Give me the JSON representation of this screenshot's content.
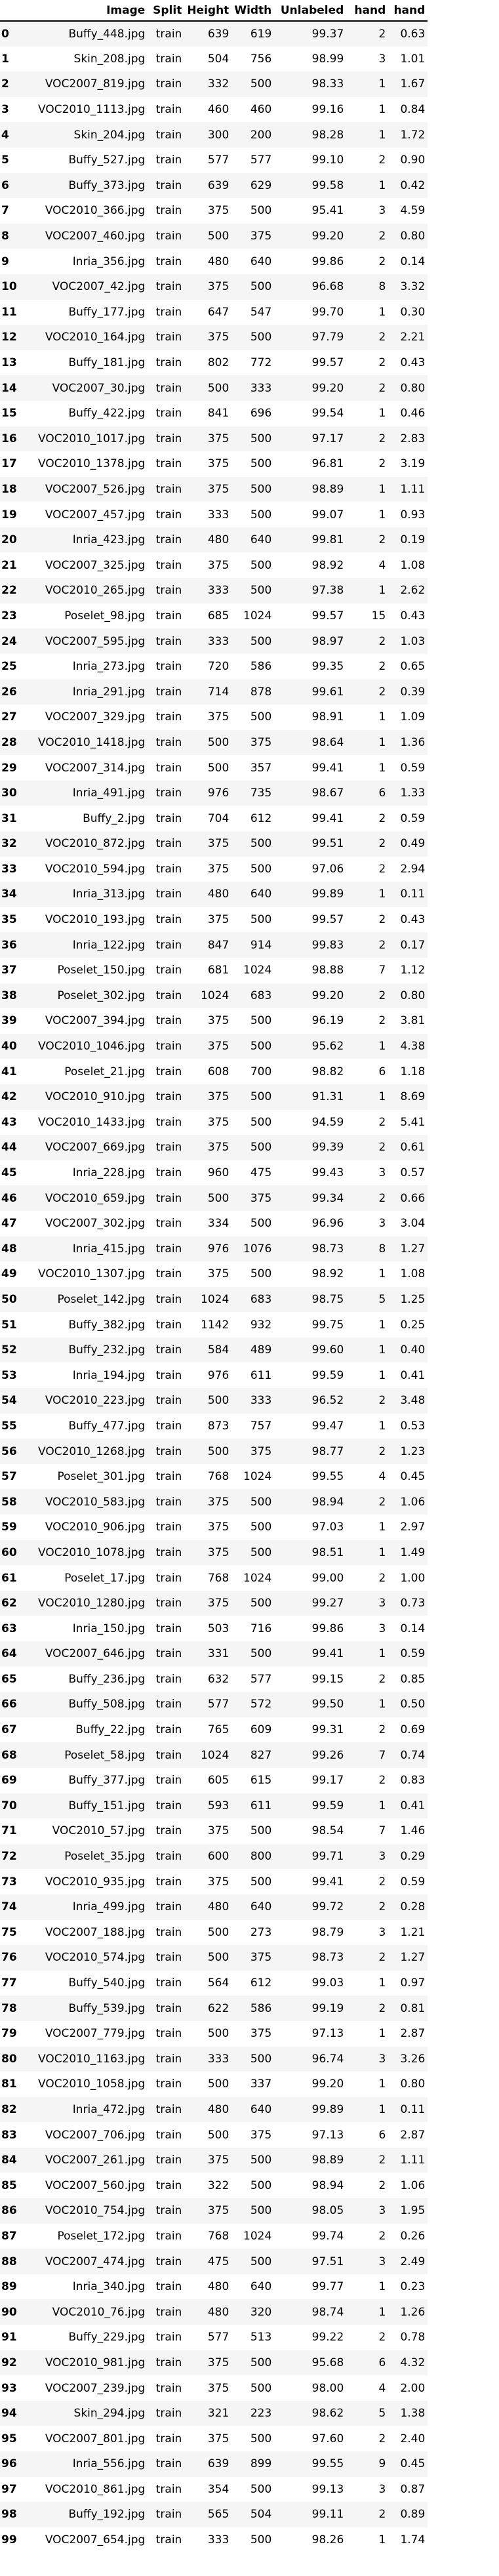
{
  "columns": [
    "",
    "Image",
    "Split",
    "Height",
    "Width",
    "Unlabeled",
    "hand",
    "hand"
  ],
  "rows": [
    [
      "0",
      "Buffy_448.jpg",
      "train",
      "639",
      "619",
      "99.37",
      "2",
      "0.63"
    ],
    [
      "1",
      "Skin_208.jpg",
      "train",
      "504",
      "756",
      "98.99",
      "3",
      "1.01"
    ],
    [
      "2",
      "VOC2007_819.jpg",
      "train",
      "332",
      "500",
      "98.33",
      "1",
      "1.67"
    ],
    [
      "3",
      "VOC2010_1113.jpg",
      "train",
      "460",
      "460",
      "99.16",
      "1",
      "0.84"
    ],
    [
      "4",
      "Skin_204.jpg",
      "train",
      "300",
      "200",
      "98.28",
      "1",
      "1.72"
    ],
    [
      "5",
      "Buffy_527.jpg",
      "train",
      "577",
      "577",
      "99.10",
      "2",
      "0.90"
    ],
    [
      "6",
      "Buffy_373.jpg",
      "train",
      "639",
      "629",
      "99.58",
      "1",
      "0.42"
    ],
    [
      "7",
      "VOC2010_366.jpg",
      "train",
      "375",
      "500",
      "95.41",
      "3",
      "4.59"
    ],
    [
      "8",
      "VOC2007_460.jpg",
      "train",
      "500",
      "375",
      "99.20",
      "2",
      "0.80"
    ],
    [
      "9",
      "Inria_356.jpg",
      "train",
      "480",
      "640",
      "99.86",
      "2",
      "0.14"
    ],
    [
      "10",
      "VOC2007_42.jpg",
      "train",
      "375",
      "500",
      "96.68",
      "8",
      "3.32"
    ],
    [
      "11",
      "Buffy_177.jpg",
      "train",
      "647",
      "547",
      "99.70",
      "1",
      "0.30"
    ],
    [
      "12",
      "VOC2010_164.jpg",
      "train",
      "375",
      "500",
      "97.79",
      "2",
      "2.21"
    ],
    [
      "13",
      "Buffy_181.jpg",
      "train",
      "802",
      "772",
      "99.57",
      "2",
      "0.43"
    ],
    [
      "14",
      "VOC2007_30.jpg",
      "train",
      "500",
      "333",
      "99.20",
      "2",
      "0.80"
    ],
    [
      "15",
      "Buffy_422.jpg",
      "train",
      "841",
      "696",
      "99.54",
      "1",
      "0.46"
    ],
    [
      "16",
      "VOC2010_1017.jpg",
      "train",
      "375",
      "500",
      "97.17",
      "2",
      "2.83"
    ],
    [
      "17",
      "VOC2010_1378.jpg",
      "train",
      "375",
      "500",
      "96.81",
      "2",
      "3.19"
    ],
    [
      "18",
      "VOC2007_526.jpg",
      "train",
      "375",
      "500",
      "98.89",
      "1",
      "1.11"
    ],
    [
      "19",
      "VOC2007_457.jpg",
      "train",
      "333",
      "500",
      "99.07",
      "1",
      "0.93"
    ],
    [
      "20",
      "Inria_423.jpg",
      "train",
      "480",
      "640",
      "99.81",
      "2",
      "0.19"
    ],
    [
      "21",
      "VOC2007_325.jpg",
      "train",
      "375",
      "500",
      "98.92",
      "4",
      "1.08"
    ],
    [
      "22",
      "VOC2010_265.jpg",
      "train",
      "333",
      "500",
      "97.38",
      "1",
      "2.62"
    ],
    [
      "23",
      "Poselet_98.jpg",
      "train",
      "685",
      "1024",
      "99.57",
      "15",
      "0.43"
    ],
    [
      "24",
      "VOC2007_595.jpg",
      "train",
      "333",
      "500",
      "98.97",
      "2",
      "1.03"
    ],
    [
      "25",
      "Inria_273.jpg",
      "train",
      "720",
      "586",
      "99.35",
      "2",
      "0.65"
    ],
    [
      "26",
      "Inria_291.jpg",
      "train",
      "714",
      "878",
      "99.61",
      "2",
      "0.39"
    ],
    [
      "27",
      "VOC2007_329.jpg",
      "train",
      "375",
      "500",
      "98.91",
      "1",
      "1.09"
    ],
    [
      "28",
      "VOC2010_1418.jpg",
      "train",
      "500",
      "375",
      "98.64",
      "1",
      "1.36"
    ],
    [
      "29",
      "VOC2007_314.jpg",
      "train",
      "500",
      "357",
      "99.41",
      "1",
      "0.59"
    ],
    [
      "30",
      "Inria_491.jpg",
      "train",
      "976",
      "735",
      "98.67",
      "6",
      "1.33"
    ],
    [
      "31",
      "Buffy_2.jpg",
      "train",
      "704",
      "612",
      "99.41",
      "2",
      "0.59"
    ],
    [
      "32",
      "VOC2010_872.jpg",
      "train",
      "375",
      "500",
      "99.51",
      "2",
      "0.49"
    ],
    [
      "33",
      "VOC2010_594.jpg",
      "train",
      "375",
      "500",
      "97.06",
      "2",
      "2.94"
    ],
    [
      "34",
      "Inria_313.jpg",
      "train",
      "480",
      "640",
      "99.89",
      "1",
      "0.11"
    ],
    [
      "35",
      "VOC2010_193.jpg",
      "train",
      "375",
      "500",
      "99.57",
      "2",
      "0.43"
    ],
    [
      "36",
      "Inria_122.jpg",
      "train",
      "847",
      "914",
      "99.83",
      "2",
      "0.17"
    ],
    [
      "37",
      "Poselet_150.jpg",
      "train",
      "681",
      "1024",
      "98.88",
      "7",
      "1.12"
    ],
    [
      "38",
      "Poselet_302.jpg",
      "train",
      "1024",
      "683",
      "99.20",
      "2",
      "0.80"
    ],
    [
      "39",
      "VOC2007_394.jpg",
      "train",
      "375",
      "500",
      "96.19",
      "2",
      "3.81"
    ],
    [
      "40",
      "VOC2010_1046.jpg",
      "train",
      "375",
      "500",
      "95.62",
      "1",
      "4.38"
    ],
    [
      "41",
      "Poselet_21.jpg",
      "train",
      "608",
      "700",
      "98.82",
      "6",
      "1.18"
    ],
    [
      "42",
      "VOC2010_910.jpg",
      "train",
      "375",
      "500",
      "91.31",
      "1",
      "8.69"
    ],
    [
      "43",
      "VOC2010_1433.jpg",
      "train",
      "375",
      "500",
      "94.59",
      "2",
      "5.41"
    ],
    [
      "44",
      "VOC2007_669.jpg",
      "train",
      "375",
      "500",
      "99.39",
      "2",
      "0.61"
    ],
    [
      "45",
      "Inria_228.jpg",
      "train",
      "960",
      "475",
      "99.43",
      "3",
      "0.57"
    ],
    [
      "46",
      "VOC2010_659.jpg",
      "train",
      "500",
      "375",
      "99.34",
      "2",
      "0.66"
    ],
    [
      "47",
      "VOC2007_302.jpg",
      "train",
      "334",
      "500",
      "96.96",
      "3",
      "3.04"
    ],
    [
      "48",
      "Inria_415.jpg",
      "train",
      "976",
      "1076",
      "98.73",
      "8",
      "1.27"
    ],
    [
      "49",
      "VOC2010_1307.jpg",
      "train",
      "375",
      "500",
      "98.92",
      "1",
      "1.08"
    ],
    [
      "50",
      "Poselet_142.jpg",
      "train",
      "1024",
      "683",
      "98.75",
      "5",
      "1.25"
    ],
    [
      "51",
      "Buffy_382.jpg",
      "train",
      "1142",
      "932",
      "99.75",
      "1",
      "0.25"
    ],
    [
      "52",
      "Buffy_232.jpg",
      "train",
      "584",
      "489",
      "99.60",
      "1",
      "0.40"
    ],
    [
      "53",
      "Inria_194.jpg",
      "train",
      "976",
      "611",
      "99.59",
      "1",
      "0.41"
    ],
    [
      "54",
      "VOC2010_223.jpg",
      "train",
      "500",
      "333",
      "96.52",
      "2",
      "3.48"
    ],
    [
      "55",
      "Buffy_477.jpg",
      "train",
      "873",
      "757",
      "99.47",
      "1",
      "0.53"
    ],
    [
      "56",
      "VOC2010_1268.jpg",
      "train",
      "500",
      "375",
      "98.77",
      "2",
      "1.23"
    ],
    [
      "57",
      "Poselet_301.jpg",
      "train",
      "768",
      "1024",
      "99.55",
      "4",
      "0.45"
    ],
    [
      "58",
      "VOC2010_583.jpg",
      "train",
      "375",
      "500",
      "98.94",
      "2",
      "1.06"
    ],
    [
      "59",
      "VOC2010_906.jpg",
      "train",
      "375",
      "500",
      "97.03",
      "1",
      "2.97"
    ],
    [
      "60",
      "VOC2010_1078.jpg",
      "train",
      "375",
      "500",
      "98.51",
      "1",
      "1.49"
    ],
    [
      "61",
      "Poselet_17.jpg",
      "train",
      "768",
      "1024",
      "99.00",
      "2",
      "1.00"
    ],
    [
      "62",
      "VOC2010_1280.jpg",
      "train",
      "375",
      "500",
      "99.27",
      "3",
      "0.73"
    ],
    [
      "63",
      "Inria_150.jpg",
      "train",
      "503",
      "716",
      "99.86",
      "3",
      "0.14"
    ],
    [
      "64",
      "VOC2007_646.jpg",
      "train",
      "331",
      "500",
      "99.41",
      "1",
      "0.59"
    ],
    [
      "65",
      "Buffy_236.jpg",
      "train",
      "632",
      "577",
      "99.15",
      "2",
      "0.85"
    ],
    [
      "66",
      "Buffy_508.jpg",
      "train",
      "577",
      "572",
      "99.50",
      "1",
      "0.50"
    ],
    [
      "67",
      "Buffy_22.jpg",
      "train",
      "765",
      "609",
      "99.31",
      "2",
      "0.69"
    ],
    [
      "68",
      "Poselet_58.jpg",
      "train",
      "1024",
      "827",
      "99.26",
      "7",
      "0.74"
    ],
    [
      "69",
      "Buffy_377.jpg",
      "train",
      "605",
      "615",
      "99.17",
      "2",
      "0.83"
    ],
    [
      "70",
      "Buffy_151.jpg",
      "train",
      "593",
      "611",
      "99.59",
      "1",
      "0.41"
    ],
    [
      "71",
      "VOC2010_57.jpg",
      "train",
      "375",
      "500",
      "98.54",
      "7",
      "1.46"
    ],
    [
      "72",
      "Poselet_35.jpg",
      "train",
      "600",
      "800",
      "99.71",
      "3",
      "0.29"
    ],
    [
      "73",
      "VOC2010_935.jpg",
      "train",
      "375",
      "500",
      "99.41",
      "2",
      "0.59"
    ],
    [
      "74",
      "Inria_499.jpg",
      "train",
      "480",
      "640",
      "99.72",
      "2",
      "0.28"
    ],
    [
      "75",
      "VOC2007_188.jpg",
      "train",
      "500",
      "273",
      "98.79",
      "3",
      "1.21"
    ],
    [
      "76",
      "VOC2010_574.jpg",
      "train",
      "500",
      "375",
      "98.73",
      "2",
      "1.27"
    ],
    [
      "77",
      "Buffy_540.jpg",
      "train",
      "564",
      "612",
      "99.03",
      "1",
      "0.97"
    ],
    [
      "78",
      "Buffy_539.jpg",
      "train",
      "622",
      "586",
      "99.19",
      "2",
      "0.81"
    ],
    [
      "79",
      "VOC2007_779.jpg",
      "train",
      "500",
      "375",
      "97.13",
      "1",
      "2.87"
    ],
    [
      "80",
      "VOC2010_1163.jpg",
      "train",
      "333",
      "500",
      "96.74",
      "3",
      "3.26"
    ],
    [
      "81",
      "VOC2010_1058.jpg",
      "train",
      "500",
      "337",
      "99.20",
      "1",
      "0.80"
    ],
    [
      "82",
      "Inria_472.jpg",
      "train",
      "480",
      "640",
      "99.89",
      "1",
      "0.11"
    ],
    [
      "83",
      "VOC2007_706.jpg",
      "train",
      "500",
      "375",
      "97.13",
      "6",
      "2.87"
    ],
    [
      "84",
      "VOC2007_261.jpg",
      "train",
      "375",
      "500",
      "98.89",
      "2",
      "1.11"
    ],
    [
      "85",
      "VOC2007_560.jpg",
      "train",
      "322",
      "500",
      "98.94",
      "2",
      "1.06"
    ],
    [
      "86",
      "VOC2010_754.jpg",
      "train",
      "375",
      "500",
      "98.05",
      "3",
      "1.95"
    ],
    [
      "87",
      "Poselet_172.jpg",
      "train",
      "768",
      "1024",
      "99.74",
      "2",
      "0.26"
    ],
    [
      "88",
      "VOC2007_474.jpg",
      "train",
      "475",
      "500",
      "97.51",
      "3",
      "2.49"
    ],
    [
      "89",
      "Inria_340.jpg",
      "train",
      "480",
      "640",
      "99.77",
      "1",
      "0.23"
    ],
    [
      "90",
      "VOC2010_76.jpg",
      "train",
      "480",
      "320",
      "98.74",
      "1",
      "1.26"
    ],
    [
      "91",
      "Buffy_229.jpg",
      "train",
      "577",
      "513",
      "99.22",
      "2",
      "0.78"
    ],
    [
      "92",
      "VOC2010_981.jpg",
      "train",
      "375",
      "500",
      "95.68",
      "6",
      "4.32"
    ],
    [
      "93",
      "VOC2007_239.jpg",
      "train",
      "375",
      "500",
      "98.00",
      "4",
      "2.00"
    ],
    [
      "94",
      "Skin_294.jpg",
      "train",
      "321",
      "223",
      "98.62",
      "5",
      "1.38"
    ],
    [
      "95",
      "VOC2007_801.jpg",
      "train",
      "375",
      "500",
      "97.60",
      "2",
      "2.40"
    ],
    [
      "96",
      "Inria_556.jpg",
      "train",
      "639",
      "899",
      "99.55",
      "9",
      "0.45"
    ],
    [
      "97",
      "VOC2010_861.jpg",
      "train",
      "354",
      "500",
      "99.13",
      "3",
      "0.87"
    ],
    [
      "98",
      "Buffy_192.jpg",
      "train",
      "565",
      "504",
      "99.11",
      "2",
      "0.89"
    ],
    [
      "99",
      "VOC2007_654.jpg",
      "train",
      "333",
      "500",
      "98.26",
      "1",
      "1.74"
    ]
  ]
}
